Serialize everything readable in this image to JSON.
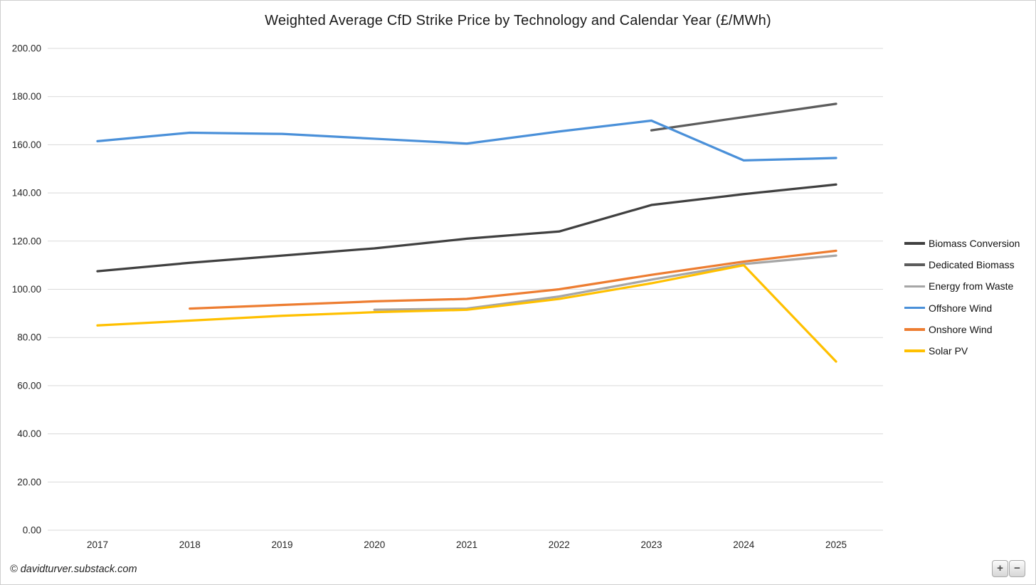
{
  "page": {
    "title": "Weighted Average CfD Strike Price by Technology and Calendar Year (£/MWh)"
  },
  "chart_data": {
    "type": "line",
    "title": "Weighted Average CfD Strike Price by Technology and Calendar Year (£/MWh)",
    "x": [
      2017,
      2018,
      2019,
      2020,
      2021,
      2022,
      2023,
      2024,
      2025
    ],
    "series": [
      {
        "name": "Biomass Conversion",
        "color": "#404040",
        "values": [
          107.5,
          111,
          114,
          117,
          121,
          124,
          135,
          139.5,
          143.5
        ]
      },
      {
        "name": "Dedicated Biomass",
        "color": "#5c5c5c",
        "values": [
          null,
          null,
          null,
          null,
          null,
          null,
          166,
          171.5,
          177
        ]
      },
      {
        "name": "Energy from Waste",
        "color": "#a6a6a6",
        "values": [
          null,
          null,
          null,
          91.5,
          92,
          97,
          104,
          110.5,
          114
        ]
      },
      {
        "name": "Offshore Wind",
        "color": "#4a90d9",
        "values": [
          161.5,
          165,
          164.5,
          162.5,
          160.5,
          165.5,
          170,
          153.5,
          154.5
        ]
      },
      {
        "name": "Onshore Wind",
        "color": "#ed7d31",
        "values": [
          null,
          92,
          93.5,
          95,
          96,
          100,
          106,
          111.5,
          116
        ]
      },
      {
        "name": "Solar PV",
        "color": "#ffc000",
        "values": [
          85,
          87,
          89,
          90.5,
          91.5,
          96,
          102.5,
          110,
          70
        ]
      }
    ],
    "ylim": [
      0,
      200
    ],
    "y_tick_step": 20,
    "y_tick_decimals": 2,
    "grid": "horizontal",
    "gridline_color": "#d9d9d9",
    "axis_text_color": "#262626",
    "legend_position": "right",
    "xlabel": "",
    "ylabel": ""
  },
  "footer": {
    "attribution": "© davidturver.substack.com"
  },
  "zoom_controls": {
    "zoom_in_label": "+",
    "zoom_out_label": "−"
  }
}
